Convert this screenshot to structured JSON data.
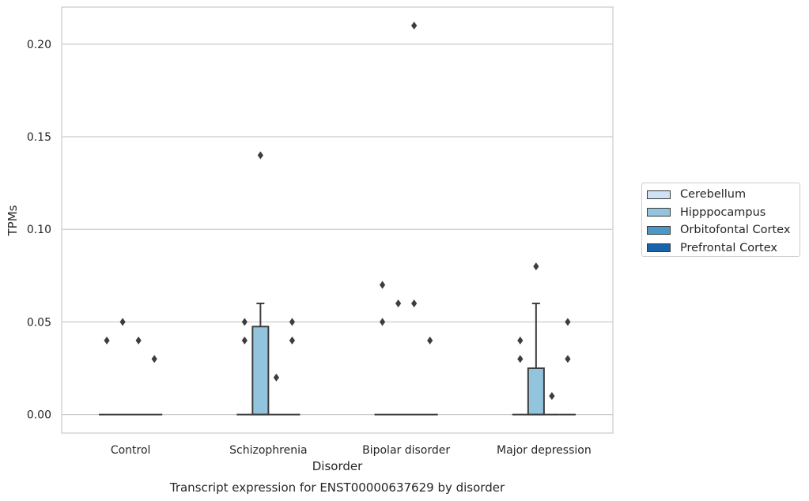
{
  "chart_data": {
    "type": "box",
    "title": "Transcript expression for ENST00000637629 by disorder",
    "xlabel": "Disorder",
    "ylabel": "TPMs",
    "ylim": [
      -0.01,
      0.22
    ],
    "yticks": [
      "0.00",
      "0.05",
      "0.10",
      "0.15",
      "0.20"
    ],
    "categories": [
      "Control",
      "Schizophrenia",
      "Bipolar disorder",
      "Major depression"
    ],
    "legend_placement": "right",
    "grid": "horizontal",
    "series": [
      {
        "name": "Cerebellum",
        "color": "#cfe1f2",
        "boxes": [
          {
            "q1": 0,
            "median": 0,
            "q3": 0,
            "whisker_low": 0,
            "whisker_high": 0,
            "outliers": [
              0.04
            ]
          },
          {
            "q1": 0,
            "median": 0,
            "q3": 0,
            "whisker_low": 0,
            "whisker_high": 0,
            "outliers": [
              0.04,
              0.05
            ]
          },
          {
            "q1": 0,
            "median": 0,
            "q3": 0,
            "whisker_low": 0,
            "whisker_high": 0,
            "outliers": [
              0.05,
              0.07
            ]
          },
          {
            "q1": 0,
            "median": 0,
            "q3": 0,
            "whisker_low": 0,
            "whisker_high": 0,
            "outliers": [
              0.03,
              0.04
            ]
          }
        ]
      },
      {
        "name": "Hipppocampus",
        "color": "#93c4de",
        "boxes": [
          {
            "q1": 0,
            "median": 0,
            "q3": 0,
            "whisker_low": 0,
            "whisker_high": 0,
            "outliers": [
              0.05
            ]
          },
          {
            "q1": 0,
            "median": 0,
            "q3": 0.0475,
            "whisker_low": 0,
            "whisker_high": 0.06,
            "outliers": [
              0.14
            ]
          },
          {
            "q1": 0,
            "median": 0,
            "q3": 0,
            "whisker_low": 0,
            "whisker_high": 0,
            "outliers": [
              0.06
            ]
          },
          {
            "q1": 0,
            "median": 0,
            "q3": 0.025,
            "whisker_low": 0,
            "whisker_high": 0.06,
            "outliers": [
              0.08
            ]
          }
        ]
      },
      {
        "name": "Orbitofontal Cortex",
        "color": "#4a98c9",
        "boxes": [
          {
            "q1": 0,
            "median": 0,
            "q3": 0,
            "whisker_low": 0,
            "whisker_high": 0,
            "outliers": [
              0.04
            ]
          },
          {
            "q1": 0,
            "median": 0,
            "q3": 0,
            "whisker_low": 0,
            "whisker_high": 0,
            "outliers": [
              0.02
            ]
          },
          {
            "q1": 0,
            "median": 0,
            "q3": 0,
            "whisker_low": 0,
            "whisker_high": 0,
            "outliers": [
              0.06,
              0.21
            ]
          },
          {
            "q1": 0,
            "median": 0,
            "q3": 0,
            "whisker_low": 0,
            "whisker_high": 0,
            "outliers": [
              0.01
            ]
          }
        ]
      },
      {
        "name": "Prefrontal Cortex",
        "color": "#1764ab",
        "boxes": [
          {
            "q1": 0,
            "median": 0,
            "q3": 0,
            "whisker_low": 0,
            "whisker_high": 0,
            "outliers": [
              0.03
            ]
          },
          {
            "q1": 0,
            "median": 0,
            "q3": 0,
            "whisker_low": 0,
            "whisker_high": 0,
            "outliers": [
              0.04,
              0.05
            ]
          },
          {
            "q1": 0,
            "median": 0,
            "q3": 0,
            "whisker_low": 0,
            "whisker_high": 0,
            "outliers": [
              0.04
            ]
          },
          {
            "q1": 0,
            "median": 0,
            "q3": 0,
            "whisker_low": 0,
            "whisker_high": 0,
            "outliers": [
              0.03,
              0.05
            ]
          }
        ]
      }
    ]
  }
}
